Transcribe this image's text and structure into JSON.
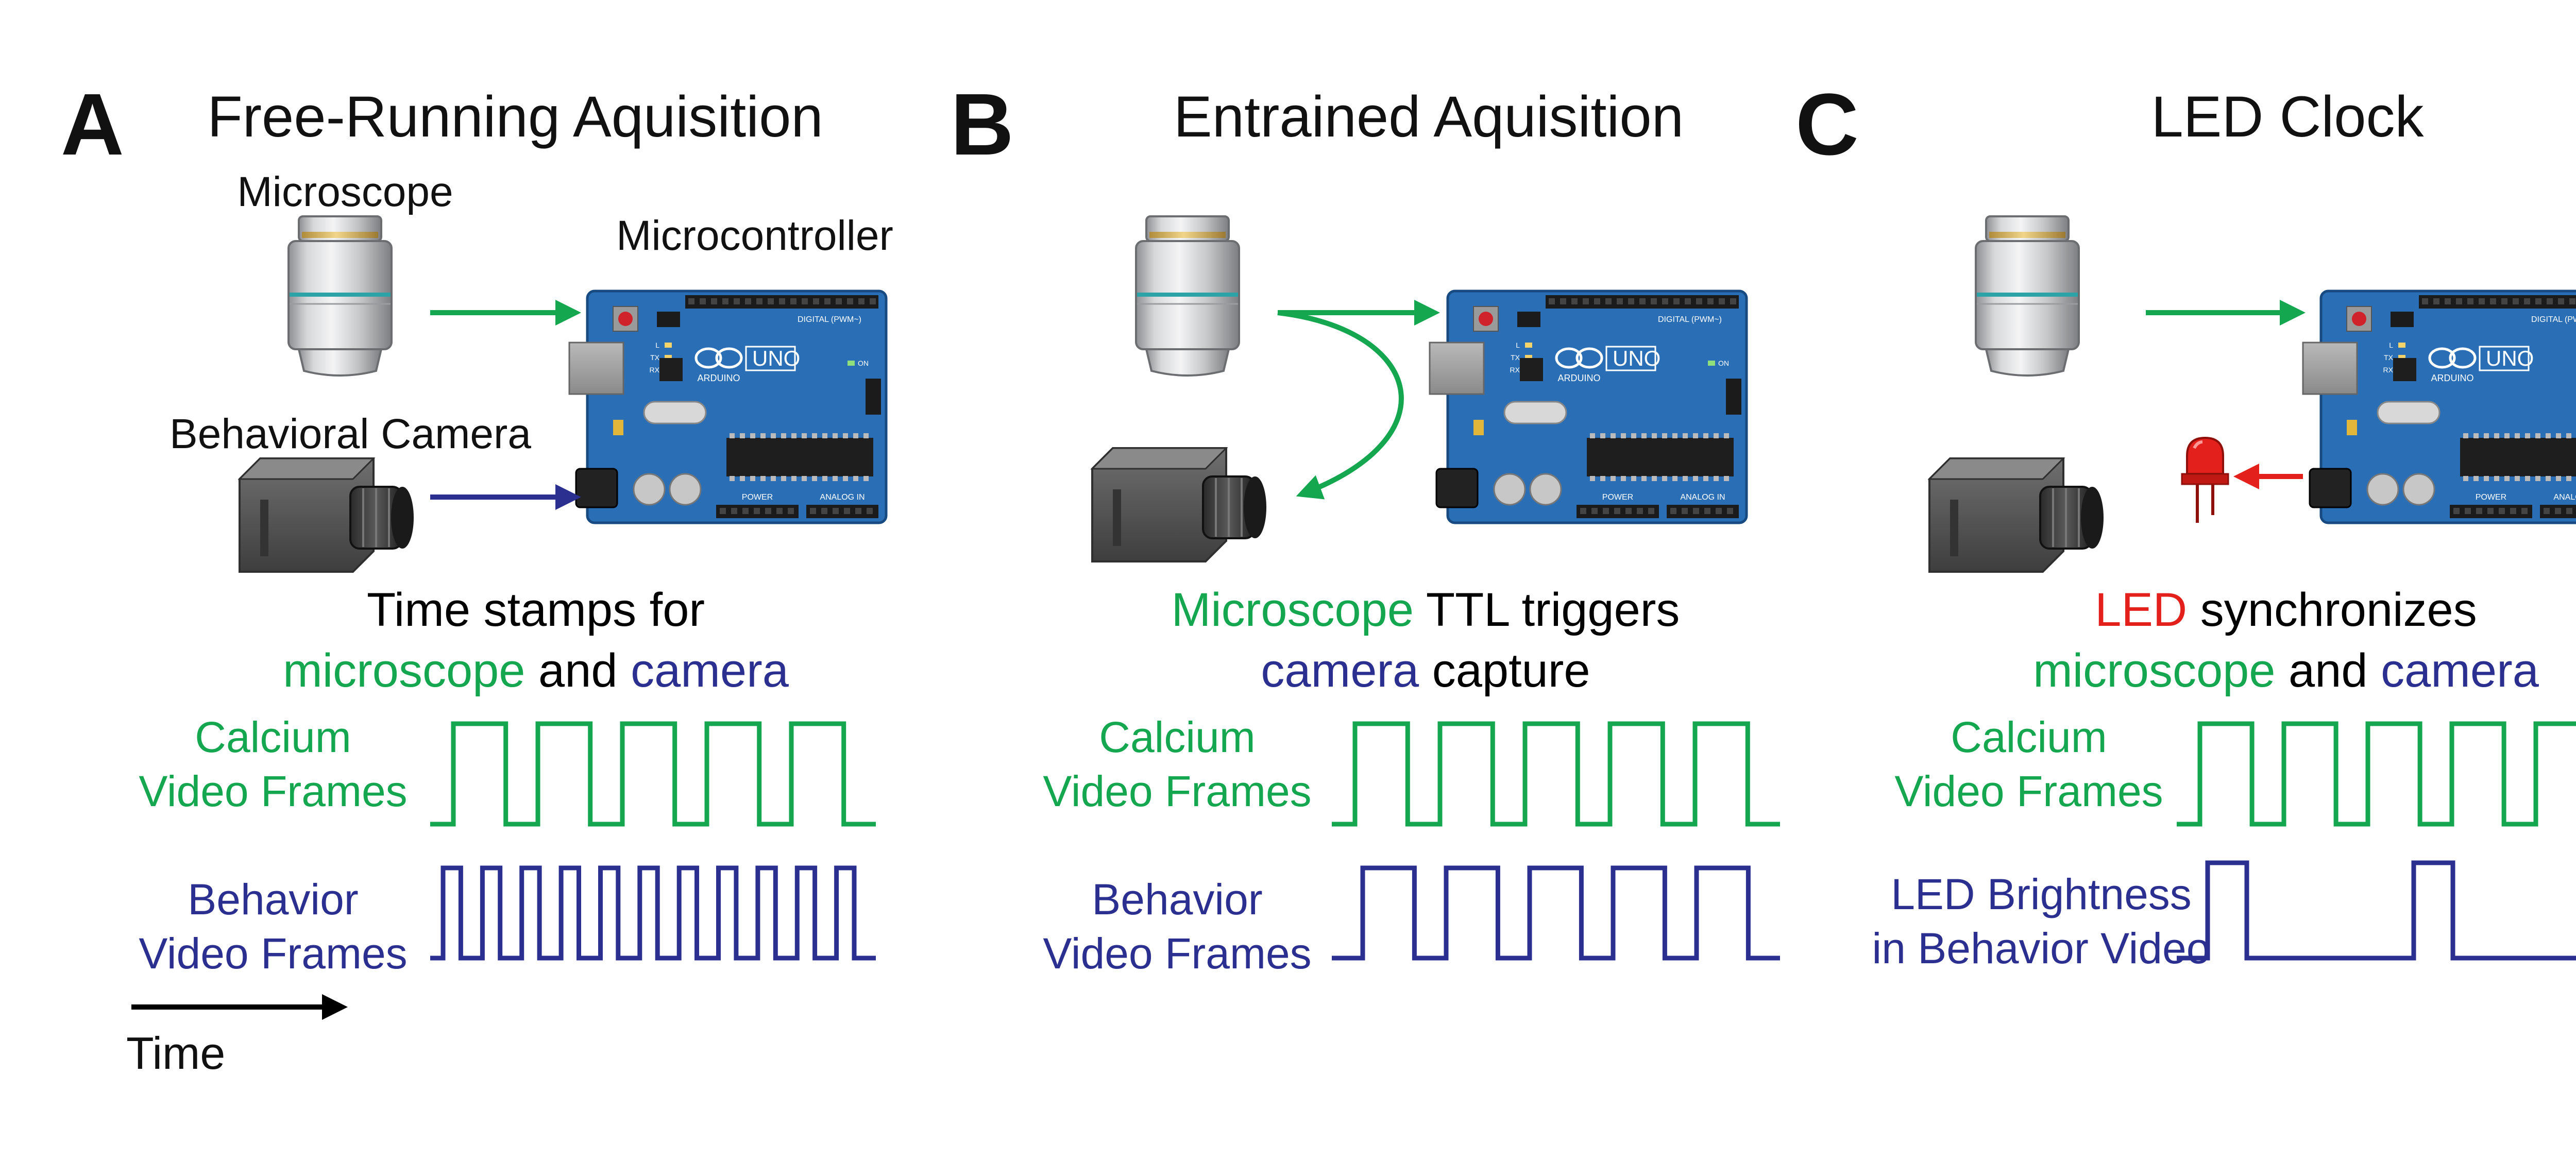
{
  "colors": {
    "green": "#15a750",
    "blue": "#2b2f8f",
    "red": "#e3201b",
    "black": "#000000",
    "board": "#2a6fb5"
  },
  "panels": [
    {
      "letter": "A",
      "title": "Free-Running Aquisition",
      "label_microscope": "Microscope",
      "label_microcontroller": "Microcontroller",
      "label_camera": "Behavioral Camera",
      "caption_line1": [
        {
          "text": "Time stamps for",
          "color": "black"
        }
      ],
      "caption_line2": [
        {
          "text": "microscope",
          "color": "green"
        },
        {
          "text": " and ",
          "color": "black"
        },
        {
          "text": "camera",
          "color": "blue"
        }
      ],
      "trace1_label": [
        "Calcium",
        "Video Frames"
      ],
      "trace2_label": [
        "Behavior",
        "Video Frames"
      ],
      "time_label": "Time"
    },
    {
      "letter": "B",
      "title": "Entrained Aquisition",
      "caption_line1": [
        {
          "text": "Microscope",
          "color": "green"
        },
        {
          "text": " TTL triggers",
          "color": "black"
        }
      ],
      "caption_line2": [
        {
          "text": "camera",
          "color": "blue"
        },
        {
          "text": " capture",
          "color": "black"
        }
      ],
      "trace1_label": [
        "Calcium",
        "Video Frames"
      ],
      "trace2_label": [
        "Behavior",
        "Video Frames"
      ]
    },
    {
      "letter": "C",
      "title": "LED Clock",
      "caption_line1": [
        {
          "text": "LED",
          "color": "red"
        },
        {
          "text": " synchronizes",
          "color": "black"
        }
      ],
      "caption_line2": [
        {
          "text": "microscope",
          "color": "green"
        },
        {
          "text": " and ",
          "color": "black"
        },
        {
          "text": "camera",
          "color": "blue"
        }
      ],
      "trace1_label": [
        "Calcium",
        "Video Frames"
      ],
      "trace2_label": [
        "LED Brightness",
        "in Behavior Video"
      ]
    }
  ],
  "board": {
    "logo": "UNO",
    "brand": "ARDUINO",
    "header_digital": "DIGITAL (PWM~)",
    "header_power": "POWER",
    "header_analog": "ANALOG IN",
    "led_labels": [
      "L",
      "TX",
      "RX"
    ],
    "on_label": "ON"
  },
  "waveforms": {
    "A": {
      "calcium_pulses": 5,
      "behavior_pulses": 11
    },
    "B": {
      "calcium_pulses": 5,
      "behavior_pulses": 5
    },
    "C": {
      "calcium_pulses": 5,
      "led_pulses": 2
    }
  }
}
